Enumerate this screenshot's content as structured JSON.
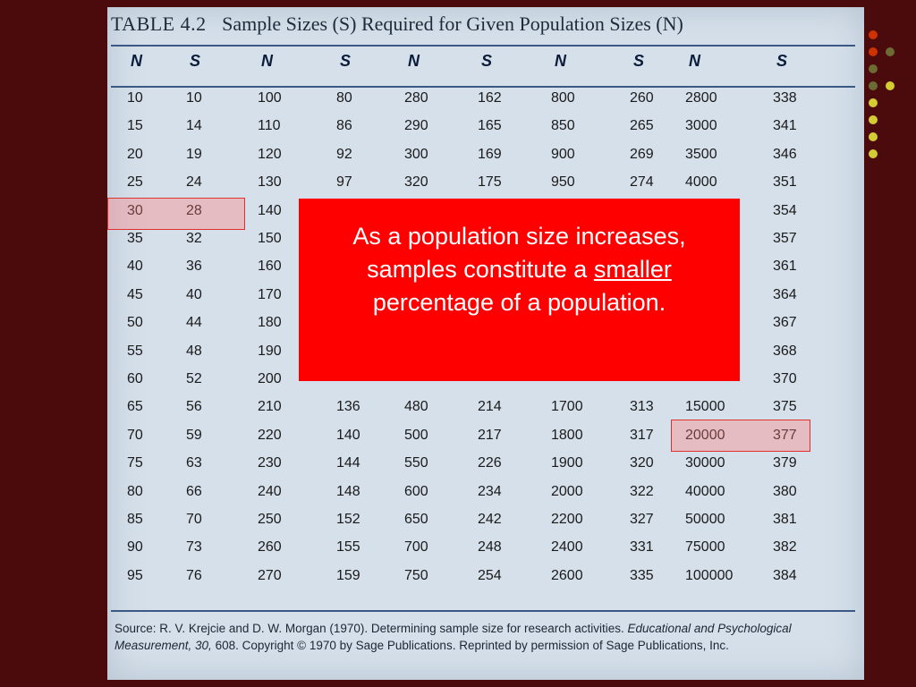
{
  "table": {
    "title_number": "TABLE 4.2",
    "title_text": "Sample Sizes (S) Required for Given Population Sizes (N)",
    "headers": [
      "N",
      "S",
      "N",
      "S",
      "N",
      "S",
      "N",
      "S",
      "N",
      "S"
    ],
    "rows": [
      [
        "10",
        "10",
        "100",
        "80",
        "280",
        "162",
        "800",
        "260",
        "2800",
        "338"
      ],
      [
        "15",
        "14",
        "110",
        "86",
        "290",
        "165",
        "850",
        "265",
        "3000",
        "341"
      ],
      [
        "20",
        "19",
        "120",
        "92",
        "300",
        "169",
        "900",
        "269",
        "3500",
        "346"
      ],
      [
        "25",
        "24",
        "130",
        "97",
        "320",
        "175",
        "950",
        "274",
        "4000",
        "351"
      ],
      [
        "30",
        "28",
        "140",
        "",
        "",
        "",
        "",
        "",
        "",
        "354"
      ],
      [
        "35",
        "32",
        "150",
        "",
        "",
        "",
        "",
        "",
        "",
        "357"
      ],
      [
        "40",
        "36",
        "160",
        "",
        "",
        "",
        "",
        "",
        "",
        "361"
      ],
      [
        "45",
        "40",
        "170",
        "",
        "",
        "",
        "",
        "",
        "",
        "364"
      ],
      [
        "50",
        "44",
        "180",
        "",
        "",
        "",
        "",
        "",
        "",
        "367"
      ],
      [
        "55",
        "48",
        "190",
        "",
        "",
        "",
        "",
        "",
        "",
        "368"
      ],
      [
        "60",
        "52",
        "200",
        "",
        "",
        "",
        "",
        "",
        "",
        "370"
      ],
      [
        "65",
        "56",
        "210",
        "136",
        "480",
        "214",
        "1700",
        "313",
        "15000",
        "375"
      ],
      [
        "70",
        "59",
        "220",
        "140",
        "500",
        "217",
        "1800",
        "317",
        "20000",
        "377"
      ],
      [
        "75",
        "63",
        "230",
        "144",
        "550",
        "226",
        "1900",
        "320",
        "30000",
        "379"
      ],
      [
        "80",
        "66",
        "240",
        "148",
        "600",
        "234",
        "2000",
        "322",
        "40000",
        "380"
      ],
      [
        "85",
        "70",
        "250",
        "152",
        "650",
        "242",
        "2200",
        "327",
        "50000",
        "381"
      ],
      [
        "90",
        "73",
        "260",
        "155",
        "700",
        "248",
        "2400",
        "331",
        "75000",
        "382"
      ],
      [
        "95",
        "76",
        "270",
        "159",
        "750",
        "254",
        "2600",
        "335",
        "100000",
        "384"
      ]
    ]
  },
  "source": {
    "prefix": "Source:",
    "authors": "R. V. Krejcie and D. W. Morgan (1970). Determining sample size for research activities.",
    "journal": "Educational and Psychological Measurement, 30,",
    "rest": "608. Copyright © 1970 by Sage Publications. Reprinted by permission of Sage Publications, Inc."
  },
  "callout": {
    "line1": "As a population size increases,",
    "line2_pre": "samples constitute a",
    "line2_emph": "smaller",
    "line3": "percentage of a population."
  },
  "colors": {
    "background": "#4b0a0c",
    "callout": "#ff0000",
    "highlight_border": "#e03030",
    "dots": [
      "#cc3300",
      "#cc3300",
      "#6b6b33",
      "#6b6b33",
      "#6b6b33",
      "#d4cc33",
      "#d4cc33",
      "#d4cc33",
      "#d4cc33",
      "#d4cc33"
    ]
  }
}
